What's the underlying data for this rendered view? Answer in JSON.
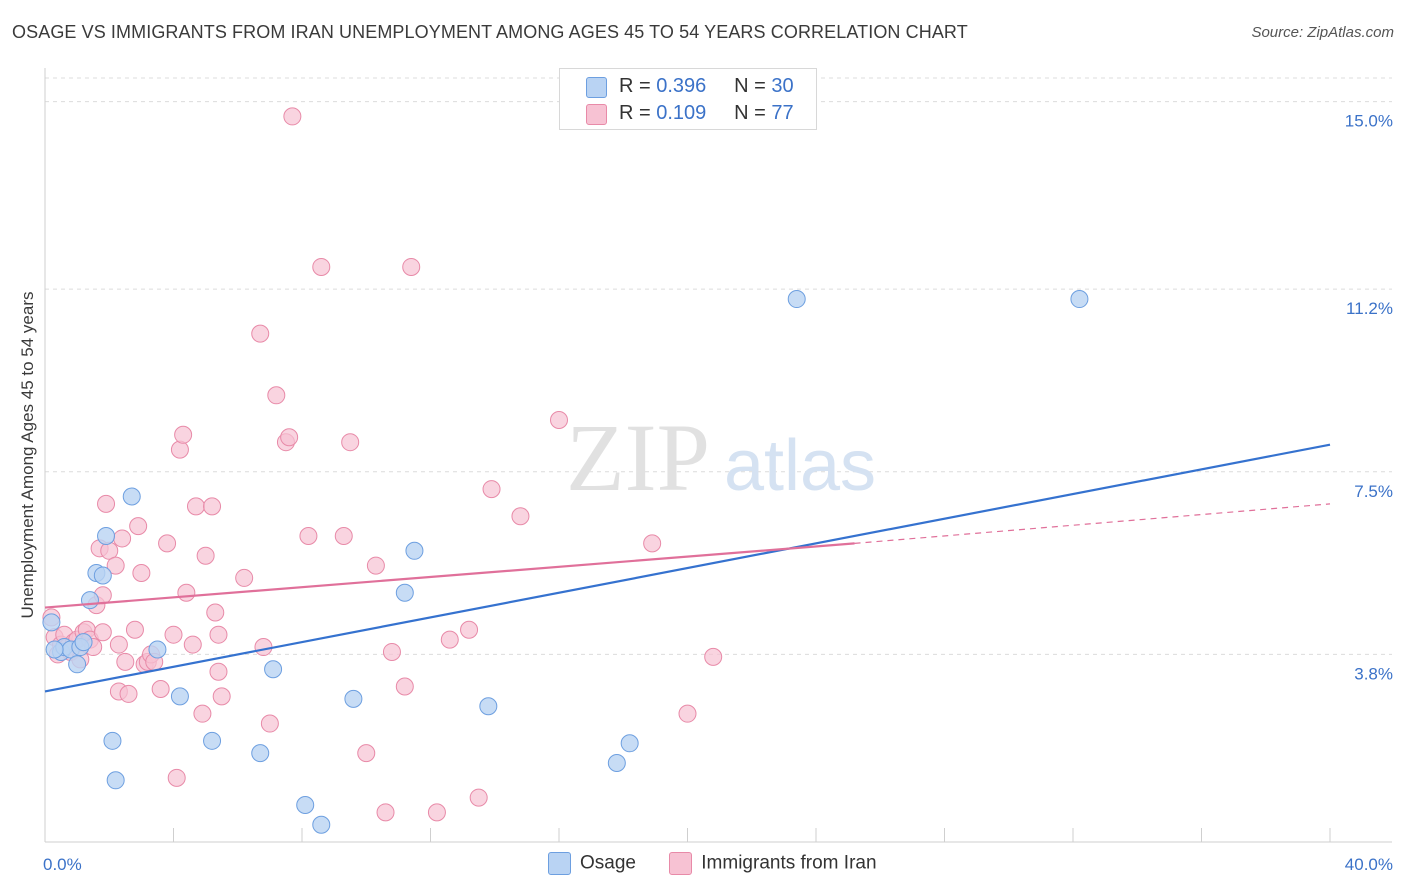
{
  "title": "OSAGE VS IMMIGRANTS FROM IRAN UNEMPLOYMENT AMONG AGES 45 TO 54 YEARS CORRELATION CHART",
  "source": "Source: ZipAtlas.com",
  "watermark": {
    "zip": "ZIP",
    "atlas": "atlas"
  },
  "legend_top": [
    {
      "r_label": "R =",
      "r_value": "0.396",
      "n_label": "N =",
      "n_value": "30"
    },
    {
      "r_label": "R =",
      "r_value": "0.109",
      "n_label": "N =",
      "n_value": "77"
    }
  ],
  "colors": {
    "osage_fill": "#b9d3f3",
    "osage_stroke": "#6d9fe0",
    "osage_line": "#3572cf",
    "iran_fill": "#f7c2d3",
    "iran_stroke": "#e88aa8",
    "iran_line": "#e0709a",
    "tick_text": "#3b72c8",
    "grid": "#dcdcdc"
  },
  "chart_data": {
    "type": "scatter",
    "title": "OSAGE VS IMMIGRANTS FROM IRAN UNEMPLOYMENT AMONG AGES 45 TO 54 YEARS CORRELATION CHART",
    "xlabel": "",
    "ylabel": "Unemployment Among Ages 45 to 54 years",
    "xlim": [
      0,
      40
    ],
    "ylim": [
      0,
      15.6
    ],
    "x_tick_labels": [
      "0.0%",
      "40.0%"
    ],
    "y_ticks": [
      3.8,
      7.5,
      11.2,
      15.0
    ],
    "y_tick_labels": [
      "3.8%",
      "7.5%",
      "11.2%",
      "15.0%"
    ],
    "legend": [
      "Osage",
      "Immigrants from Iran"
    ],
    "series": [
      {
        "name": "Osage",
        "R": 0.396,
        "N": 30,
        "trend": {
          "x": [
            0,
            40
          ],
          "y": [
            3.05,
            8.05
          ]
        },
        "points": [
          [
            0.2,
            4.45
          ],
          [
            0.5,
            3.85
          ],
          [
            0.6,
            3.95
          ],
          [
            0.8,
            3.9
          ],
          [
            1.1,
            3.95
          ],
          [
            1.2,
            4.05
          ],
          [
            1.0,
            3.6
          ],
          [
            1.4,
            4.9
          ],
          [
            1.6,
            5.45
          ],
          [
            1.8,
            5.4
          ],
          [
            1.9,
            6.2
          ],
          [
            2.7,
            7.0
          ],
          [
            3.5,
            3.9
          ],
          [
            4.2,
            2.95
          ],
          [
            2.1,
            2.05
          ],
          [
            2.2,
            1.25
          ],
          [
            5.2,
            2.05
          ],
          [
            6.7,
            1.8
          ],
          [
            7.1,
            3.5
          ],
          [
            8.1,
            0.75
          ],
          [
            8.6,
            0.35
          ],
          [
            9.6,
            2.9
          ],
          [
            11.2,
            5.05
          ],
          [
            11.5,
            5.9
          ],
          [
            13.8,
            2.75
          ],
          [
            17.8,
            1.6
          ],
          [
            18.2,
            2.0
          ],
          [
            23.4,
            11.0
          ],
          [
            32.2,
            11.0
          ],
          [
            0.3,
            3.9
          ]
        ]
      },
      {
        "name": "Immigrants from Iran",
        "R": 0.109,
        "N": 77,
        "trend_solid": {
          "x": [
            0,
            25.2
          ],
          "y": [
            4.75,
            6.05
          ]
        },
        "trend_dashed": {
          "x": [
            25.2,
            40
          ],
          "y": [
            6.05,
            6.85
          ]
        },
        "points": [
          [
            0.2,
            4.55
          ],
          [
            0.3,
            4.15
          ],
          [
            0.4,
            3.8
          ],
          [
            0.5,
            4.0
          ],
          [
            0.6,
            4.2
          ],
          [
            0.7,
            3.95
          ],
          [
            0.8,
            3.85
          ],
          [
            0.9,
            4.05
          ],
          [
            1.0,
            4.1
          ],
          [
            1.1,
            3.7
          ],
          [
            1.2,
            4.25
          ],
          [
            1.3,
            4.3
          ],
          [
            1.4,
            4.1
          ],
          [
            1.5,
            3.95
          ],
          [
            1.6,
            4.8
          ],
          [
            1.8,
            4.25
          ],
          [
            1.7,
            5.95
          ],
          [
            1.8,
            5.0
          ],
          [
            1.9,
            6.85
          ],
          [
            2.0,
            5.9
          ],
          [
            2.2,
            5.6
          ],
          [
            2.3,
            4.0
          ],
          [
            2.4,
            6.15
          ],
          [
            2.5,
            3.65
          ],
          [
            2.3,
            3.05
          ],
          [
            2.6,
            3.0
          ],
          [
            2.8,
            4.3
          ],
          [
            2.9,
            6.4
          ],
          [
            3.0,
            5.45
          ],
          [
            3.1,
            3.6
          ],
          [
            3.2,
            3.65
          ],
          [
            3.3,
            3.8
          ],
          [
            3.4,
            3.65
          ],
          [
            3.6,
            3.1
          ],
          [
            3.8,
            6.05
          ],
          [
            4.0,
            4.2
          ],
          [
            4.2,
            7.95
          ],
          [
            4.3,
            8.25
          ],
          [
            4.4,
            5.05
          ],
          [
            4.6,
            4.0
          ],
          [
            4.7,
            6.8
          ],
          [
            4.9,
            2.6
          ],
          [
            5.0,
            5.8
          ],
          [
            5.2,
            6.8
          ],
          [
            5.3,
            4.65
          ],
          [
            5.4,
            4.2
          ],
          [
            5.4,
            3.45
          ],
          [
            5.5,
            2.95
          ],
          [
            4.1,
            1.3
          ],
          [
            6.2,
            5.35
          ],
          [
            6.7,
            10.3
          ],
          [
            6.8,
            3.95
          ],
          [
            7.0,
            2.4
          ],
          [
            7.2,
            9.05
          ],
          [
            7.5,
            8.1
          ],
          [
            7.6,
            8.2
          ],
          [
            7.7,
            14.7
          ],
          [
            8.2,
            6.2
          ],
          [
            8.6,
            11.65
          ],
          [
            9.3,
            6.2
          ],
          [
            9.5,
            8.1
          ],
          [
            10.0,
            1.8
          ],
          [
            10.3,
            5.6
          ],
          [
            10.6,
            0.6
          ],
          [
            10.8,
            3.85
          ],
          [
            11.2,
            3.15
          ],
          [
            11.4,
            11.65
          ],
          [
            12.2,
            0.6
          ],
          [
            12.6,
            4.1
          ],
          [
            13.2,
            4.3
          ],
          [
            13.5,
            0.9
          ],
          [
            13.9,
            7.15
          ],
          [
            14.8,
            6.6
          ],
          [
            16.0,
            8.55
          ],
          [
            18.9,
            6.05
          ],
          [
            20.0,
            2.6
          ],
          [
            20.8,
            3.75
          ]
        ]
      }
    ]
  }
}
